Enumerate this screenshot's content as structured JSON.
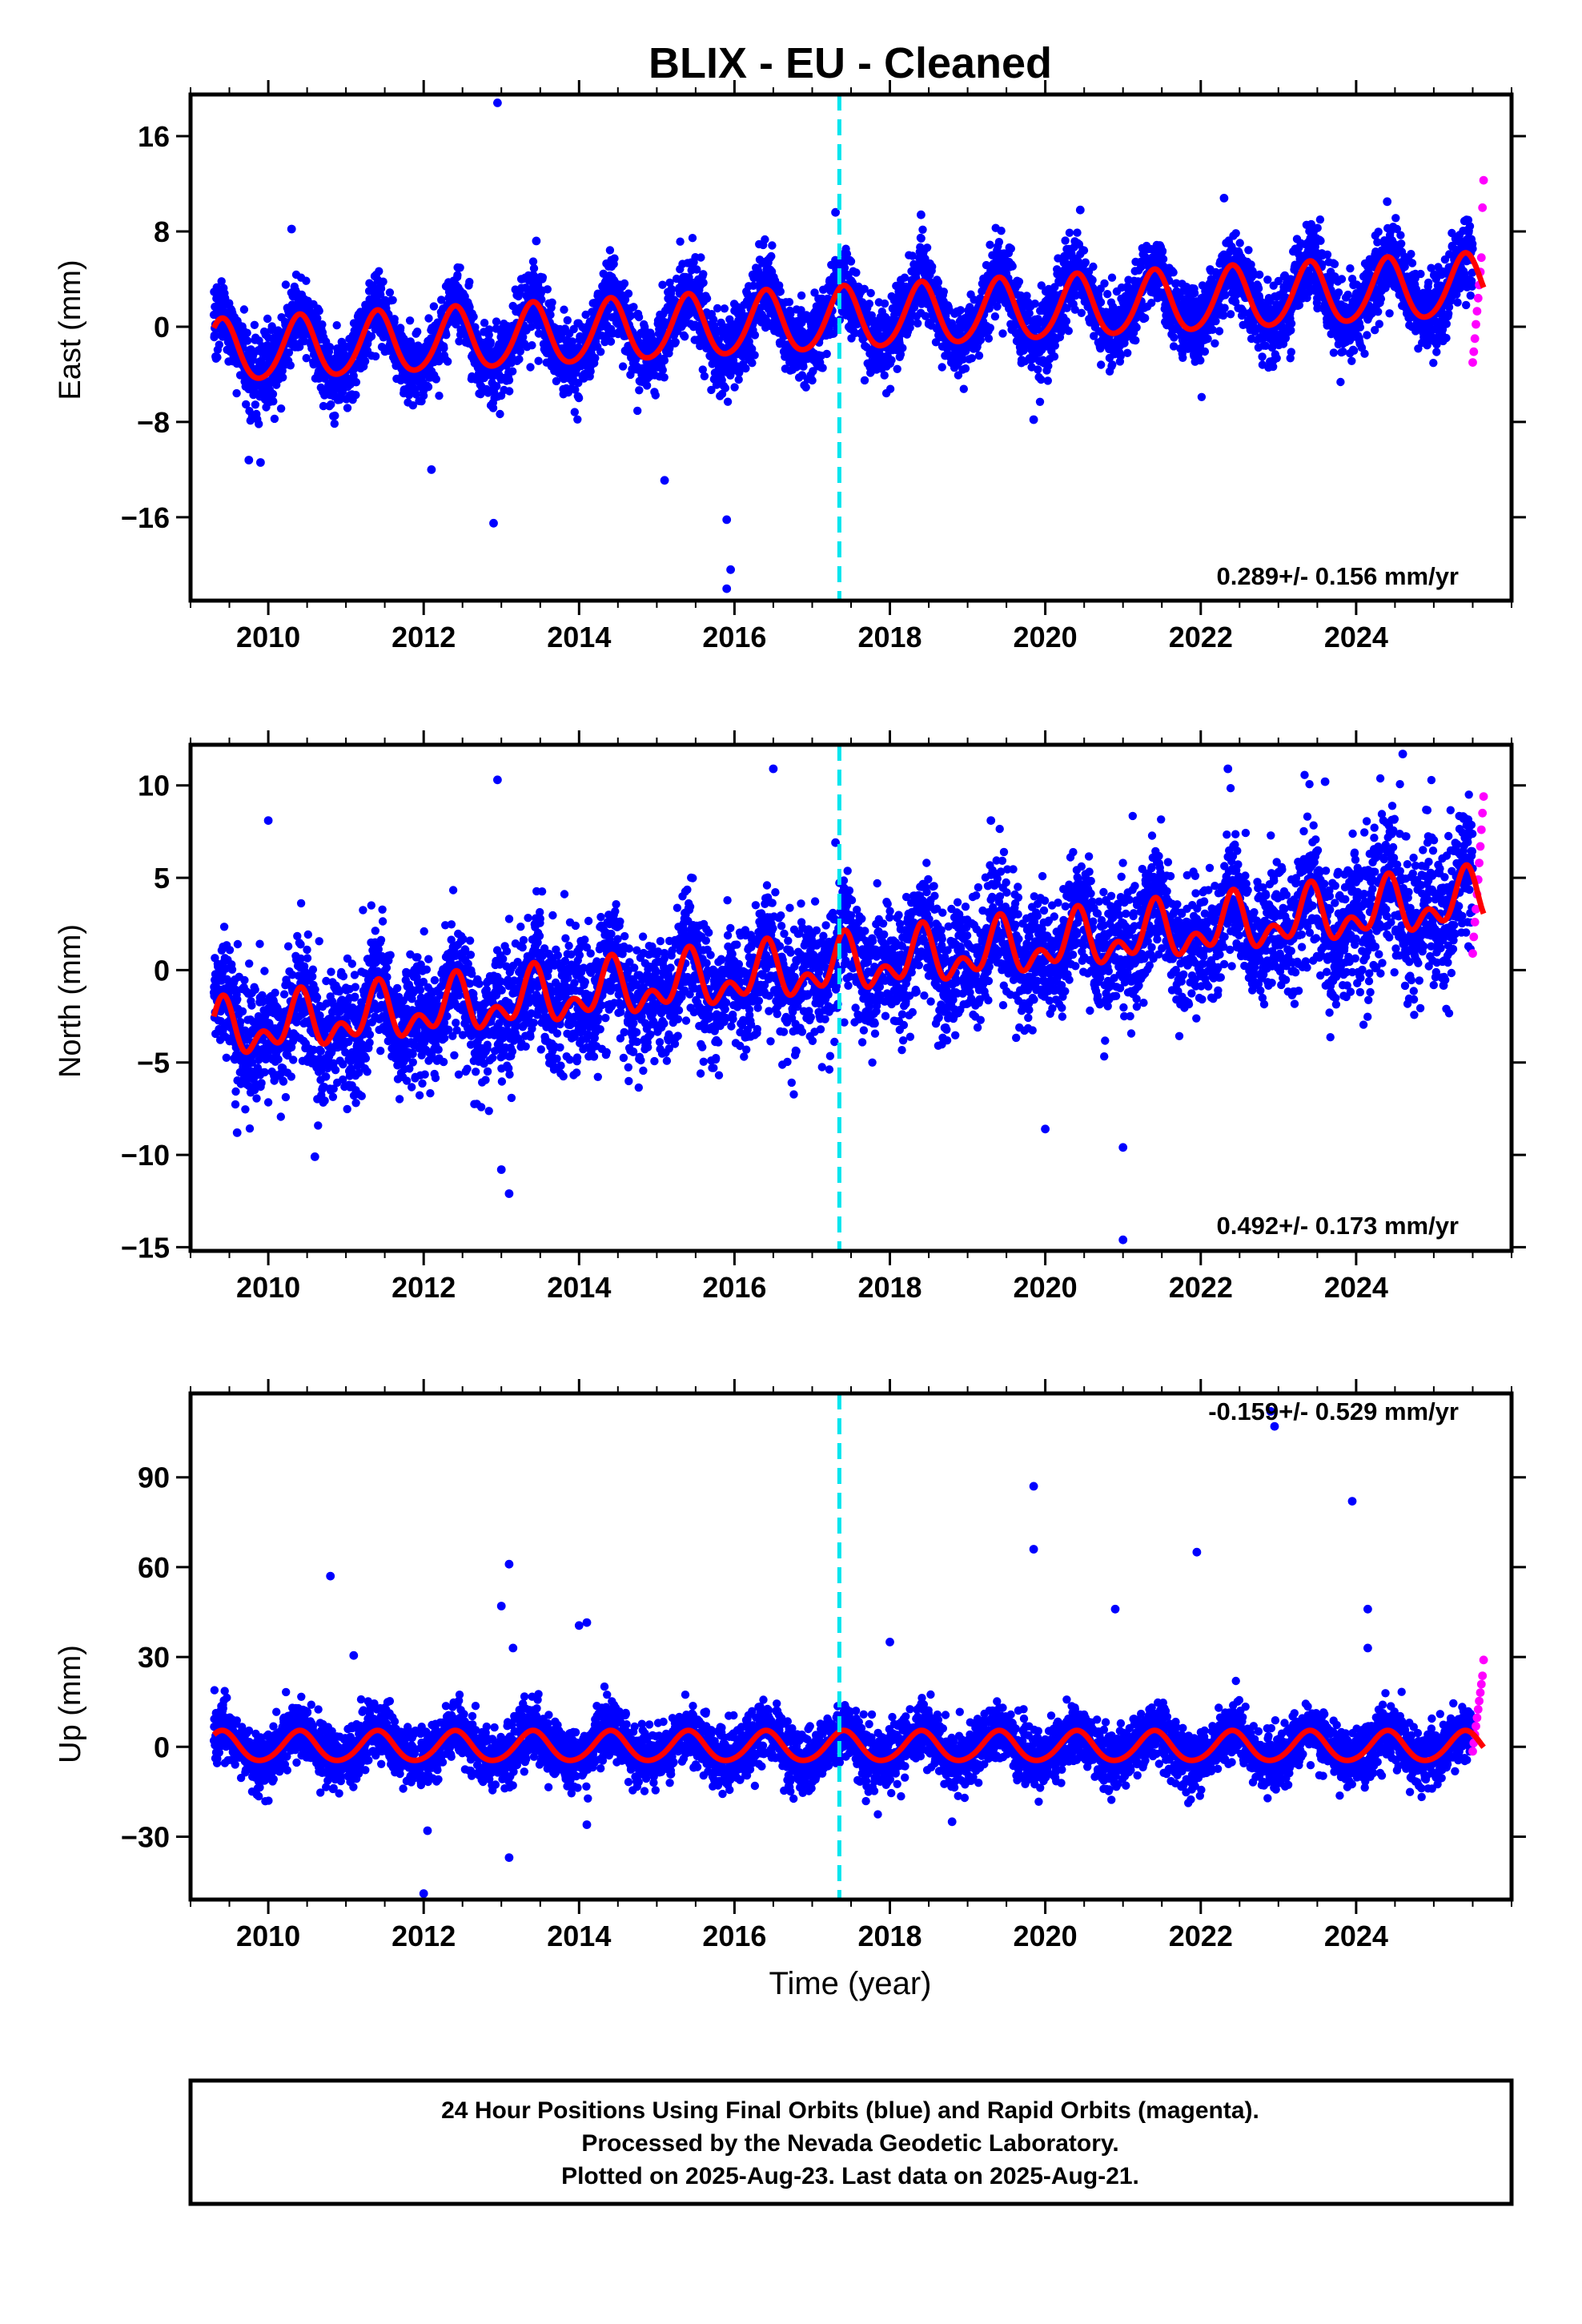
{
  "title": "BLIX  - EU - Cleaned",
  "xlabel": "Time (year)",
  "footer": [
    "24 Hour Positions Using Final Orbits (blue) and Rapid Orbits (magenta).",
    "Processed by the Nevada Geodetic Laboratory.",
    "Plotted on 2025-Aug-23. Last data on 2025-Aug-21."
  ],
  "colors": {
    "final_orbits": "#0000ff",
    "rapid_orbits": "#ff00ff",
    "model_fit": "#ff0000",
    "equipment_change": "#00e5ee",
    "frame": "#000000"
  },
  "chart_data": [
    {
      "type": "scatter",
      "name": "east",
      "ylabel": "East (mm)",
      "xlim": [
        2009.0,
        2026.0
      ],
      "ylim": [
        -23,
        19.5
      ],
      "x_ticks": [
        2010,
        2012,
        2014,
        2016,
        2018,
        2020,
        2022,
        2024
      ],
      "y_ticks": [
        -16,
        -8,
        0,
        8,
        16
      ],
      "rate_label": "0.289+/- 0.156 mm/yr",
      "rate_position": "bottom-right",
      "equipment_change_year": 2017.35,
      "data_span": [
        2009.3,
        2025.64
      ],
      "rapid_orbit_span": [
        2025.5,
        2025.64
      ],
      "seasonal_model": {
        "trend_start": -2.2,
        "trend_end": 3.4,
        "annual_amplitude": 2.6,
        "semiannual_amplitude": 0.3
      },
      "scatter_sd": 1.6,
      "rapid_values": [
        -3.0,
        -2.1,
        -1.0,
        0.2,
        1.3,
        2.4,
        3.5,
        4.6,
        5.8,
        10.0,
        12.3
      ],
      "outliers": [
        {
          "x": 2012.95,
          "y": 18.8
        },
        {
          "x": 2012.9,
          "y": -16.5
        },
        {
          "x": 2015.9,
          "y": -16.2
        },
        {
          "x": 2015.95,
          "y": -20.4
        },
        {
          "x": 2015.9,
          "y": -22.0
        },
        {
          "x": 2015.1,
          "y": -12.9
        },
        {
          "x": 2012.1,
          "y": -12.0
        },
        {
          "x": 2009.75,
          "y": -11.2
        },
        {
          "x": 2009.9,
          "y": -11.4
        },
        {
          "x": 2010.3,
          "y": 8.2
        },
        {
          "x": 2017.3,
          "y": 9.6
        },
        {
          "x": 2018.4,
          "y": 9.4
        },
        {
          "x": 2020.45,
          "y": 9.8
        },
        {
          "x": 2022.3,
          "y": 10.8
        },
        {
          "x": 2024.4,
          "y": 10.5
        },
        {
          "x": 2013.45,
          "y": 7.2
        },
        {
          "x": 2019.85,
          "y": -7.8
        }
      ]
    },
    {
      "type": "scatter",
      "name": "north",
      "ylabel": "North (mm)",
      "xlim": [
        2009.0,
        2026.0
      ],
      "ylim": [
        -15.2,
        12.2
      ],
      "x_ticks": [
        2010,
        2012,
        2014,
        2016,
        2018,
        2020,
        2022,
        2024
      ],
      "y_ticks": [
        -15,
        -10,
        -5,
        0,
        5,
        10
      ],
      "rate_label": "0.492+/- 0.173 mm/yr",
      "rate_position": "bottom-right",
      "equipment_change_year": 2017.35,
      "data_span": [
        2009.3,
        2025.64
      ],
      "rapid_orbit_span": [
        2025.5,
        2025.64
      ],
      "seasonal_model": {
        "trend_start": -3.4,
        "trend_end": 3.8,
        "annual_amplitude": 1.1,
        "semiannual_amplitude": 0.9
      },
      "scatter_sd": 1.7,
      "rapid_values": [
        0.9,
        1.8,
        2.6,
        3.3,
        4.1,
        4.9,
        5.8,
        6.7,
        7.6,
        8.5,
        9.4
      ],
      "outliers": [
        {
          "x": 2012.95,
          "y": 10.3
        },
        {
          "x": 2016.5,
          "y": 10.9
        },
        {
          "x": 2024.6,
          "y": 11.7
        },
        {
          "x": 2022.35,
          "y": 10.9
        },
        {
          "x": 2010.0,
          "y": 8.1
        },
        {
          "x": 2013.1,
          "y": -12.1
        },
        {
          "x": 2013.0,
          "y": -10.8
        },
        {
          "x": 2021.0,
          "y": -14.6
        },
        {
          "x": 2021.0,
          "y": -9.6
        },
        {
          "x": 2020.0,
          "y": -8.6
        },
        {
          "x": 2010.6,
          "y": -10.1
        },
        {
          "x": 2009.6,
          "y": -8.8
        },
        {
          "x": 2017.3,
          "y": 6.9
        },
        {
          "x": 2019.3,
          "y": 8.1
        },
        {
          "x": 2023.6,
          "y": 10.2
        }
      ]
    },
    {
      "type": "scatter",
      "name": "up",
      "ylabel": "Up (mm)",
      "xlim": [
        2009.0,
        2026.0
      ],
      "ylim": [
        -51,
        118
      ],
      "x_ticks": [
        2010,
        2012,
        2014,
        2016,
        2018,
        2020,
        2022,
        2024
      ],
      "y_ticks": [
        -30,
        0,
        30,
        60,
        90
      ],
      "rate_label": "-0.159+/- 0.529 mm/yr",
      "rate_position": "top-right",
      "equipment_change_year": 2017.35,
      "data_span": [
        2009.3,
        2025.64
      ],
      "rapid_orbit_span": [
        2025.5,
        2025.64
      ],
      "seasonal_model": {
        "trend_start": 0.0,
        "trend_end": 0.0,
        "annual_amplitude": 5.0,
        "semiannual_amplitude": 0.5
      },
      "scatter_sd": 4.8,
      "rapid_values": [
        -1.5,
        1.3,
        4.1,
        6.9,
        9.7,
        12.5,
        15.3,
        18.1,
        20.9,
        23.7,
        29.0
      ],
      "outliers": [
        {
          "x": 2010.8,
          "y": 57.0
        },
        {
          "x": 2013.1,
          "y": 61.0
        },
        {
          "x": 2013.0,
          "y": 47.0
        },
        {
          "x": 2013.15,
          "y": 33.0
        },
        {
          "x": 2014.0,
          "y": 40.5
        },
        {
          "x": 2014.1,
          "y": 41.5
        },
        {
          "x": 2019.85,
          "y": 87.0
        },
        {
          "x": 2019.85,
          "y": 66.0
        },
        {
          "x": 2021.95,
          "y": 65.0
        },
        {
          "x": 2022.9,
          "y": 112.0
        },
        {
          "x": 2022.95,
          "y": 107.0
        },
        {
          "x": 2023.95,
          "y": 82.0
        },
        {
          "x": 2024.15,
          "y": 46.0
        },
        {
          "x": 2024.15,
          "y": 33.0
        },
        {
          "x": 2012.0,
          "y": -49.0
        },
        {
          "x": 2012.05,
          "y": -28.0
        },
        {
          "x": 2013.1,
          "y": -37.0
        },
        {
          "x": 2011.1,
          "y": 30.5
        },
        {
          "x": 2020.9,
          "y": 46.0
        },
        {
          "x": 2018.0,
          "y": 35.0
        },
        {
          "x": 2018.8,
          "y": -25.0
        },
        {
          "x": 2014.1,
          "y": -26.0
        }
      ]
    }
  ]
}
